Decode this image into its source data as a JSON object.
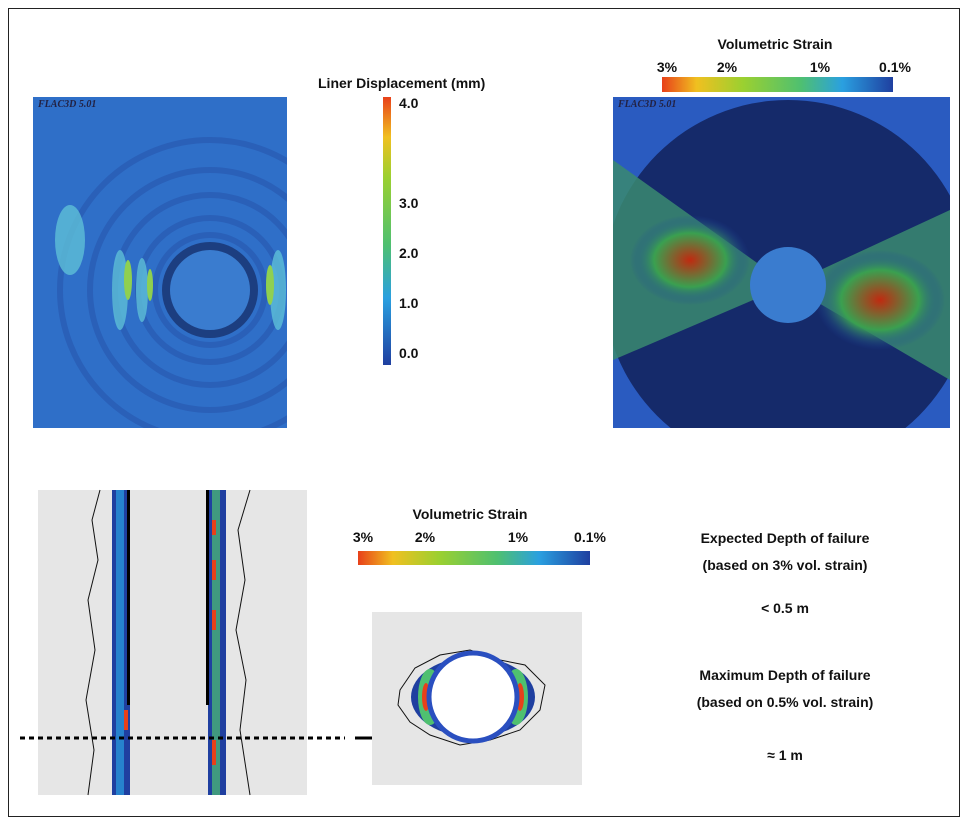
{
  "top_left": {
    "title": "Liner Displacement (mm)",
    "scale_labels": [
      "4.0",
      "3.0",
      "2.0",
      "1.0",
      "0.0"
    ],
    "watermark": "FLAC3D 5.01"
  },
  "top_right": {
    "title": "Volumetric Strain",
    "scale_labels": [
      "3%",
      "2%",
      "1%",
      "0.1%"
    ],
    "watermark": "FLAC3D 5.01"
  },
  "bottom": {
    "title": "Volumetric Strain",
    "scale_labels": [
      "3%",
      "2%",
      "1%",
      "0.1%"
    ]
  },
  "notes": {
    "expected_title": "Expected Depth of failure",
    "expected_basis": "(based on 3% vol. strain)",
    "expected_value": "< 0.5 m",
    "maximum_title": "Maximum Depth of failure",
    "maximum_basis": "(based on 0.5% vol. strain)",
    "maximum_value": "≈ 1 m"
  }
}
